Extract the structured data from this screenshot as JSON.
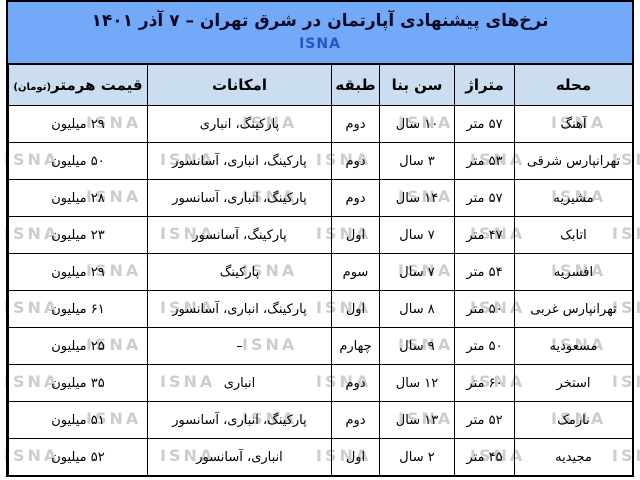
{
  "banner": {
    "title": "نرخ‌های پیشنهادی آپارتمان در شرق تهران – ۷ آذر ۱۴۰۱",
    "agency": "ISNA"
  },
  "watermark": {
    "text": "ISNA"
  },
  "price_header": {
    "main": "قیمت هرمتر",
    "unit": "(تومان)"
  },
  "chart_data": {
    "type": "table",
    "title": "نرخ‌های پیشنهادی آپارتمان در شرق تهران – ۷ آذر ۱۴۰۱",
    "columns": [
      "محله",
      "متراژ",
      "سن بنا",
      "طبقه",
      "امکانات",
      "قیمت هرمتر(تومان)"
    ],
    "rows": [
      [
        "آهنگ",
        "۵۷ متر",
        "۱۰ سال",
        "دوم",
        "پارکینگ، انباری",
        "۲۹ میلیون"
      ],
      [
        "تهرانپارس شرقی",
        "۵۳ متر",
        "۳ سال",
        "دوم",
        "پارکینگ، انباری، آسانسور",
        "۵۰ میلیون"
      ],
      [
        "مشیریه",
        "۵۷ متر",
        "۱۴ سال",
        "دوم",
        "پارکینگ، انباری، آسانسور",
        "۲۸ میلیون"
      ],
      [
        "اتابک",
        "۴۷ متر",
        "۷ سال",
        "اول",
        "پارکینگ، آسانسور",
        "۲۳ میلیون"
      ],
      [
        "افسریه",
        "۵۴ متر",
        "۷ سال",
        "سوم",
        "پارکینگ",
        "۲۹ میلیون"
      ],
      [
        "تهرانپارس غربی",
        "۵۰ متر",
        "۸ سال",
        "اول",
        "پارکینگ، انباری، آسانسور",
        "۶۱ میلیون"
      ],
      [
        "مسعودیه",
        "۵۰ متر",
        "۹ سال",
        "چهارم",
        "–",
        "۲۵ میلیون"
      ],
      [
        "استخر",
        "۶۰ متر",
        "۱۲ سال",
        "دوم",
        "انباری",
        "۳۵ میلیون"
      ],
      [
        "نارمک",
        "۵۲ متر",
        "۱۳ سال",
        "دوم",
        "پارکینگ، انباری، آسانسور",
        "۵۱ میلیون"
      ],
      [
        "مجیدیه",
        "۴۵ متر",
        "۲ سال",
        "اول",
        "انباری، آسانسور",
        "۵۲ میلیون"
      ]
    ]
  },
  "colors": {
    "banner_bg": "#72a9f9",
    "header_row_bg": "#cbdef1",
    "agency_text": "#2355c5",
    "watermark": "#c5c5c5",
    "border": "#000000"
  }
}
